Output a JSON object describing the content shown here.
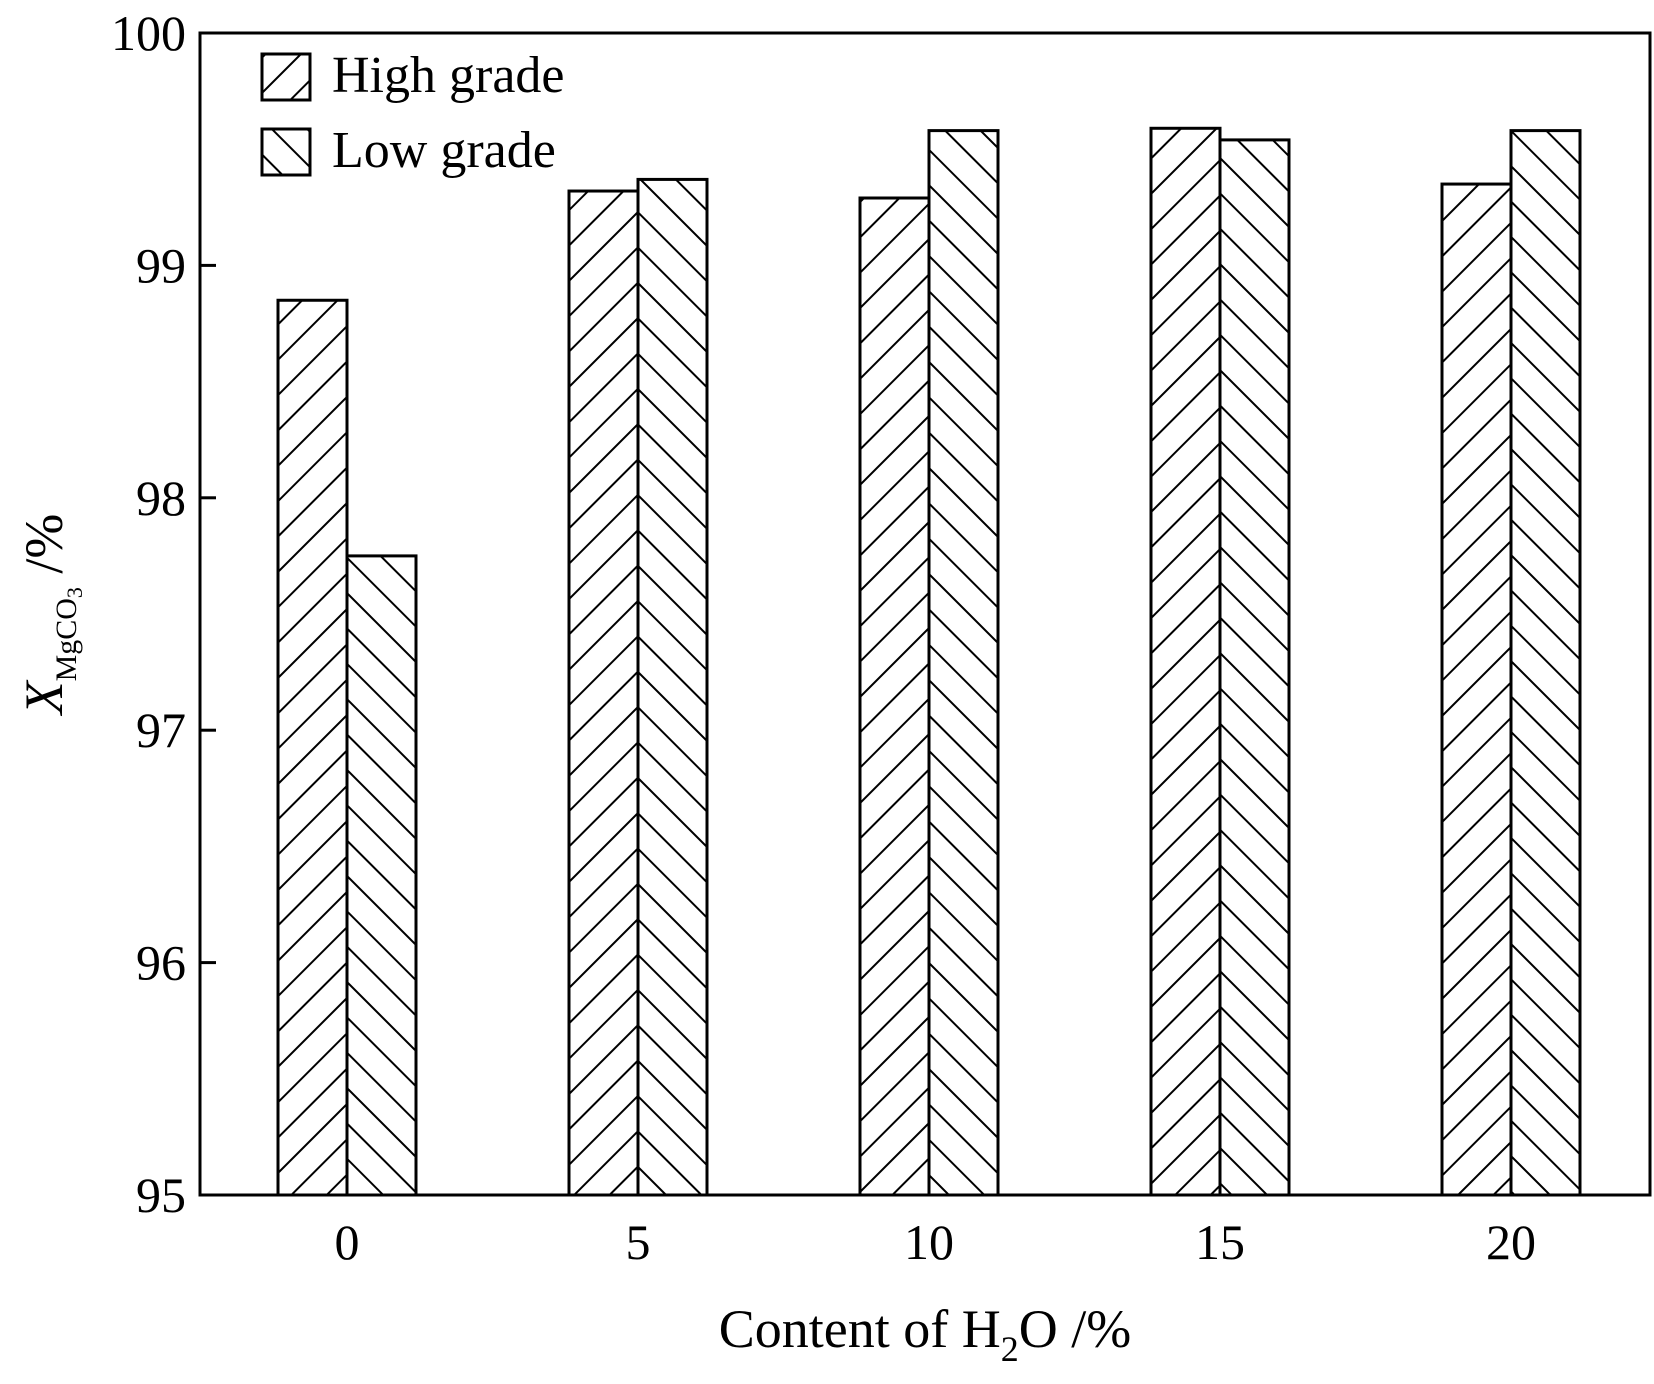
{
  "chart_data": {
    "type": "bar",
    "categories": [
      "0",
      "5",
      "10",
      "15",
      "20"
    ],
    "series": [
      {
        "name": "High grade",
        "values": [
          98.85,
          99.32,
          99.29,
          99.59,
          99.35
        ],
        "pattern": "hatch-forward"
      },
      {
        "name": "Low grade",
        "values": [
          97.75,
          99.37,
          99.58,
          99.54,
          99.58
        ],
        "pattern": "hatch-backward"
      }
    ],
    "ylim": [
      95,
      100
    ],
    "yticks": [
      "95",
      "96",
      "97",
      "98",
      "99",
      "100"
    ],
    "xlabel": {
      "main": "Content of H",
      "sub": "2",
      "tail": "O /%"
    },
    "ylabel": {
      "italic": "X",
      "sub_main": "MgCO",
      "sub_sub": "3",
      "tail": " /%"
    },
    "legend_position": "top-left",
    "grid": false,
    "colors": {
      "bar_fill": "#ffffff",
      "stroke": "#000000"
    }
  }
}
